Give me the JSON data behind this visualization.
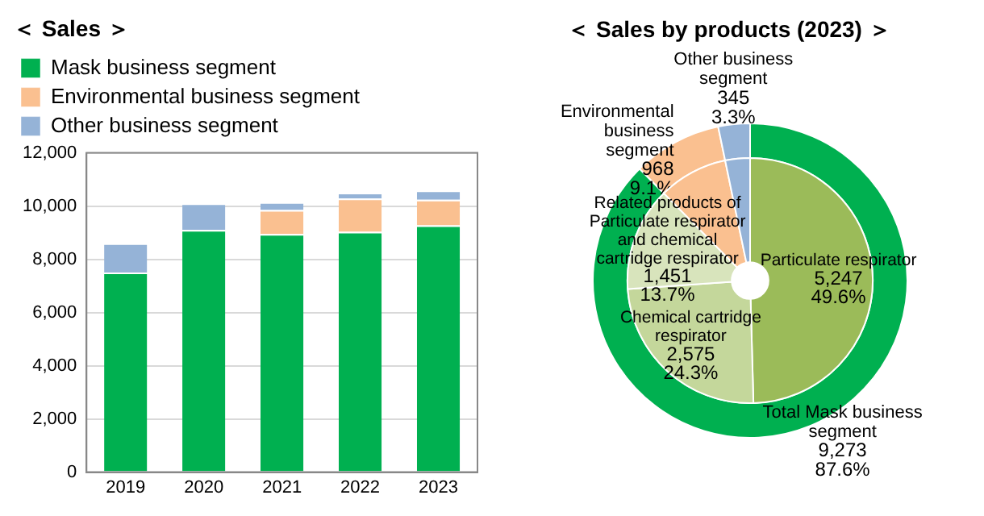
{
  "chart_data": [
    {
      "type": "bar",
      "title": "＜ Sales ＞",
      "categories": [
        "2019",
        "2020",
        "2021",
        "2022",
        "2023"
      ],
      "stacked": true,
      "series": [
        {
          "name": "Mask business segment",
          "color": "#00b050",
          "values": [
            7500,
            9100,
            8950,
            9030,
            9273
          ]
        },
        {
          "name": "Environmental business segment",
          "color": "#fac090",
          "values": [
            0,
            0,
            900,
            1250,
            968
          ]
        },
        {
          "name": "Other business segment",
          "color": "#95b3d7",
          "values": [
            1100,
            1000,
            300,
            220,
            345
          ]
        }
      ],
      "ylim": [
        0,
        12000
      ],
      "yticks": [
        {
          "value": 0,
          "label": "0"
        },
        {
          "value": 2000,
          "label": "2,000"
        },
        {
          "value": 4000,
          "label": "4,000"
        },
        {
          "value": 6000,
          "label": "6,000"
        },
        {
          "value": 8000,
          "label": "8,000"
        },
        {
          "value": 10000,
          "label": "10,000"
        },
        {
          "value": 12000,
          "label": "12,000"
        }
      ],
      "grid": "y",
      "legend": "top left"
    },
    {
      "type": "donut",
      "title": "＜ Sales by products (2023) ＞",
      "categories": [
        "Total Mask business segment",
        "Environmental business segment",
        "Other business segment"
      ],
      "values": [
        9273,
        968,
        345
      ],
      "colors": [
        "#00b050",
        "#fac090",
        "#95b3d7"
      ],
      "value_labels": [
        "9,273\n87.6%",
        "968\n9.1%",
        "345\n3.3%"
      ],
      "legend": false
    },
    {
      "type": "donut",
      "categories": [
        "Particulate respirator",
        "Chemical cartridge respirator",
        "Related products of Particulate respirator and chemical cartridge respirator",
        null,
        null
      ],
      "values": [
        5247,
        2575,
        1451,
        968,
        345
      ],
      "colors": [
        "#9bbb59",
        "#c4d79b",
        "#d8e4bc",
        "#fac090",
        "#95b3d7"
      ],
      "value_labels": [
        "5,247\n49.6%",
        "2,575\n24.3%",
        "1,451\n13.7%",
        null,
        null
      ],
      "legend": false
    }
  ]
}
